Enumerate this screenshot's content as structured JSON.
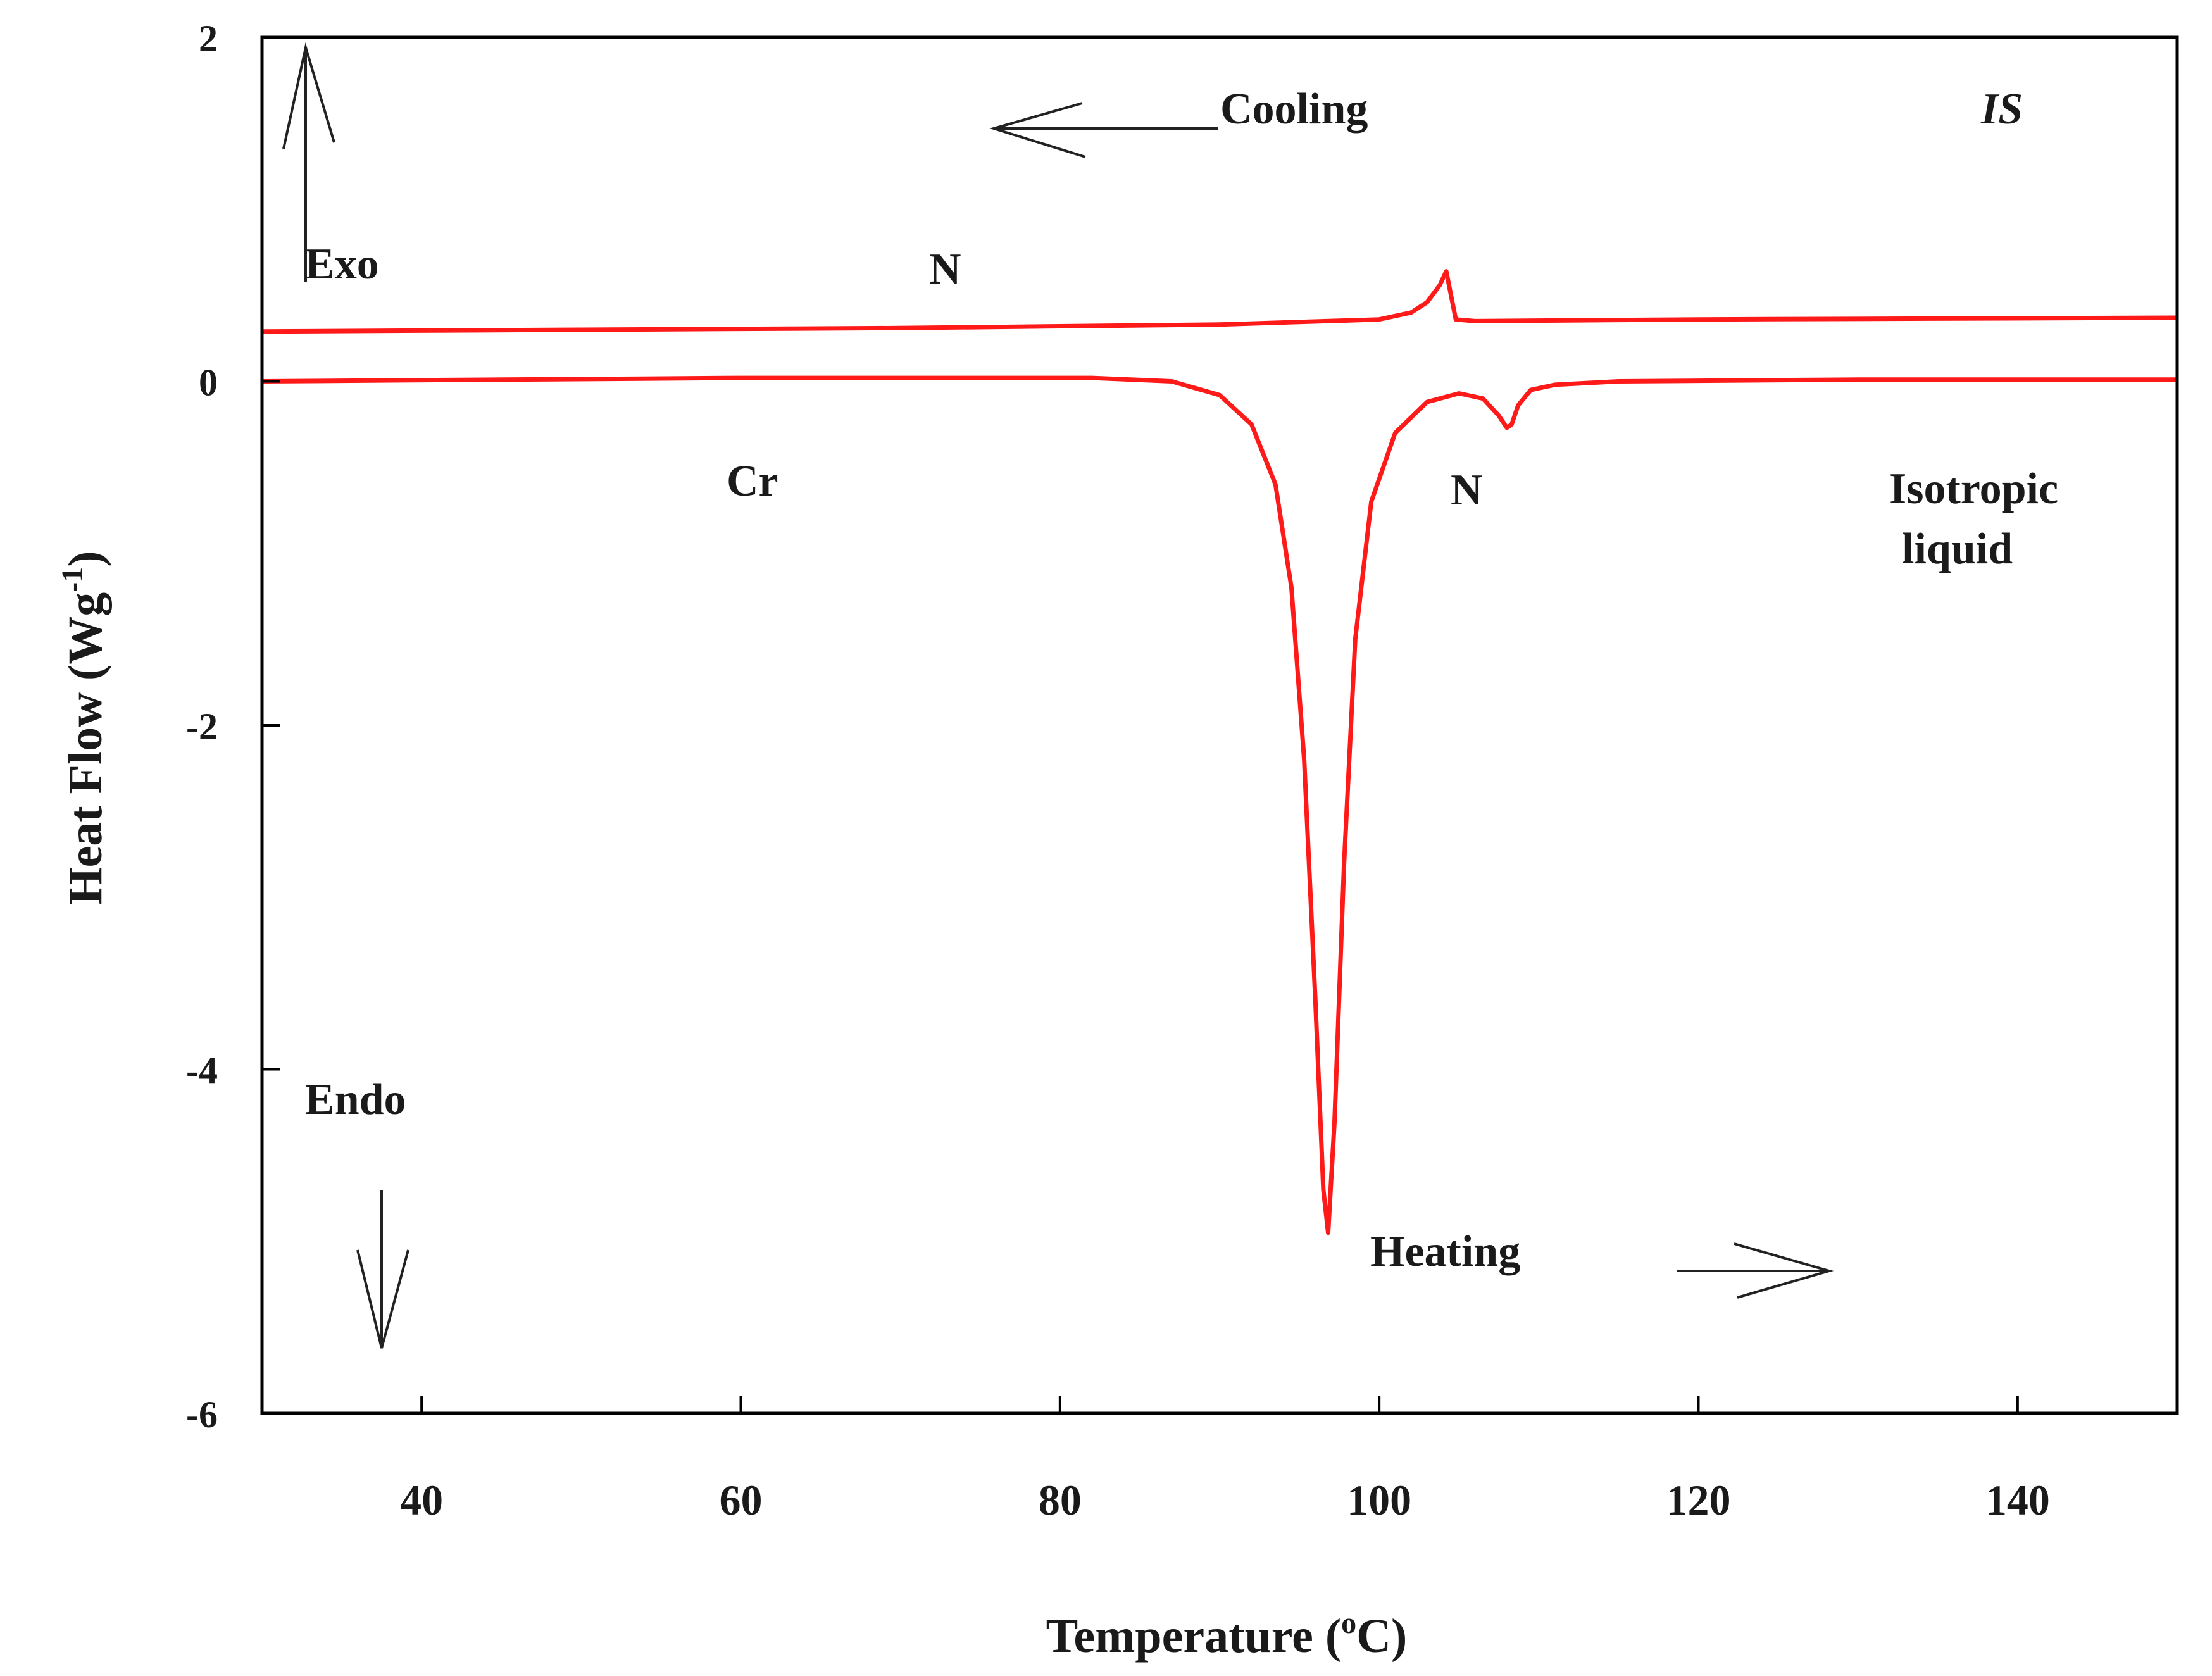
{
  "chart_data": {
    "type": "line",
    "title": "",
    "xlabel": "Temperature (°C)",
    "xlabel_parts": {
      "main": "Temperature (",
      "sup": "o",
      "tail": "C)"
    },
    "ylabel": "Heat Flow (Wg⁻¹)",
    "ylabel_parts": {
      "main": "Heat Flow (Wg",
      "sup": "-1",
      "tail": ")"
    },
    "xlim": [
      30,
      150
    ],
    "ylim": [
      -6,
      2
    ],
    "x_ticks": [
      40,
      60,
      80,
      100,
      120,
      140
    ],
    "y_ticks": [
      -6,
      -4,
      -2,
      0,
      2
    ],
    "grid": false,
    "series": [
      {
        "name": "Cooling",
        "color": "#ff1a1a",
        "x": [
          30,
          50,
          70,
          90,
          100,
          102,
          103,
          103.8,
          104.2,
          104.5,
          104.8,
          106,
          120,
          150
        ],
        "y": [
          0.29,
          0.3,
          0.31,
          0.33,
          0.36,
          0.4,
          0.46,
          0.56,
          0.64,
          0.5,
          0.36,
          0.35,
          0.36,
          0.37
        ]
      },
      {
        "name": "Heating",
        "color": "#ff1a1a",
        "x": [
          30,
          60,
          82,
          87,
          90,
          92,
          93.5,
          94.5,
          95.3,
          96,
          96.5,
          96.8,
          97.2,
          97.8,
          98.5,
          99.5,
          101,
          103,
          105,
          106.5,
          107.5,
          108,
          108.3,
          108.7,
          109.5,
          111,
          115,
          130,
          150
        ],
        "y": [
          0,
          0.02,
          0.02,
          0,
          -0.08,
          -0.25,
          -0.6,
          -1.2,
          -2.2,
          -3.6,
          -4.7,
          -4.95,
          -4.3,
          -2.8,
          -1.5,
          -0.7,
          -0.3,
          -0.12,
          -0.07,
          -0.1,
          -0.2,
          -0.27,
          -0.25,
          -0.14,
          -0.05,
          -0.02,
          0,
          0.01,
          0.01
        ]
      }
    ],
    "annotations": {
      "cooling": "Cooling",
      "is_label": "IS",
      "exo": "Exo",
      "n_cooling": "N",
      "cr": "Cr",
      "n_heating": "N",
      "isotropic_line1": "Isotropic",
      "isotropic_line2": "liquid",
      "endo": "Endo",
      "heating": "Heating"
    },
    "colors": {
      "curve": "#ff1a1a",
      "axis": "#000000",
      "arrow": "#222222"
    }
  }
}
